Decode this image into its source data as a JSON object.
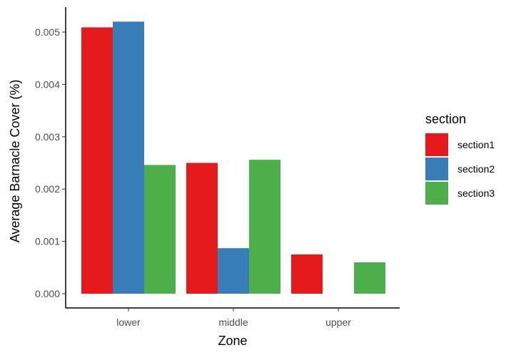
{
  "chart_data": {
    "type": "bar",
    "categories": [
      "lower",
      "middle",
      "upper"
    ],
    "series": [
      {
        "name": "section1",
        "values": [
          0.00509,
          0.0025,
          0.00075
        ],
        "color": "#E41A1C"
      },
      {
        "name": "section2",
        "values": [
          0.0052,
          0.00087,
          0
        ],
        "color": "#377EB8"
      },
      {
        "name": "section3",
        "values": [
          0.00246,
          0.00256,
          0.0006
        ],
        "color": "#4DAF4A"
      }
    ],
    "xlabel": "Zone",
    "ylabel": "Average Barnacle Cover (%)",
    "ylim": [
      0,
      0.0053
    ],
    "yticks": [
      0,
      0.001,
      0.002,
      0.003,
      0.004,
      0.005
    ],
    "ytick_labels": [
      "0.000",
      "0.001",
      "0.002",
      "0.003",
      "0.004",
      "0.005"
    ],
    "legend": {
      "title": "section",
      "position": "right"
    },
    "grid": false
  }
}
